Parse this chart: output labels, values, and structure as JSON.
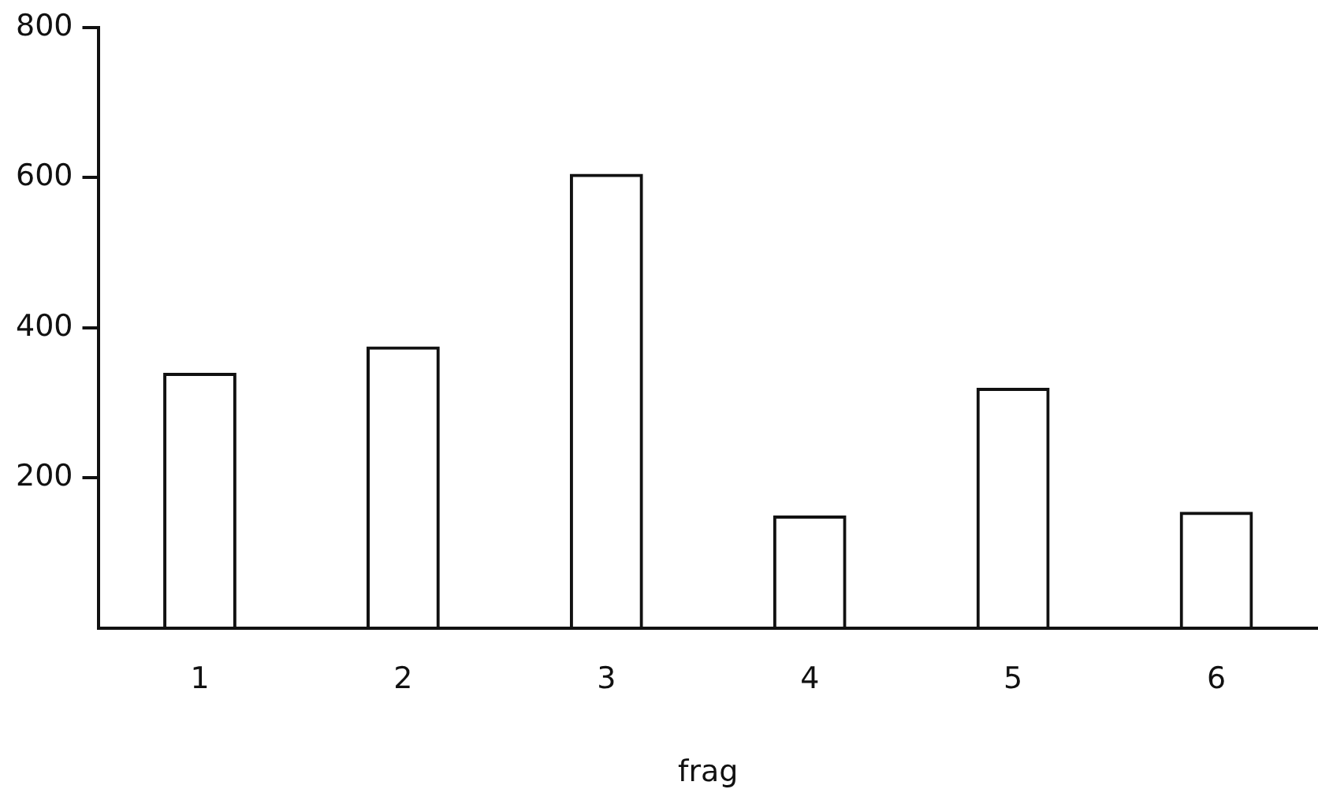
{
  "chart_data": {
    "type": "bar",
    "xlabel": "frag",
    "categories": [
      "1",
      "2",
      "3",
      "4",
      "5",
      "6"
    ],
    "values": [
      340,
      375,
      605,
      150,
      320,
      155
    ],
    "color": "#111111",
    "ylim": [
      0,
      800
    ],
    "yticks": [
      200,
      400,
      600,
      800
    ],
    "grid": false,
    "legend": false
  }
}
